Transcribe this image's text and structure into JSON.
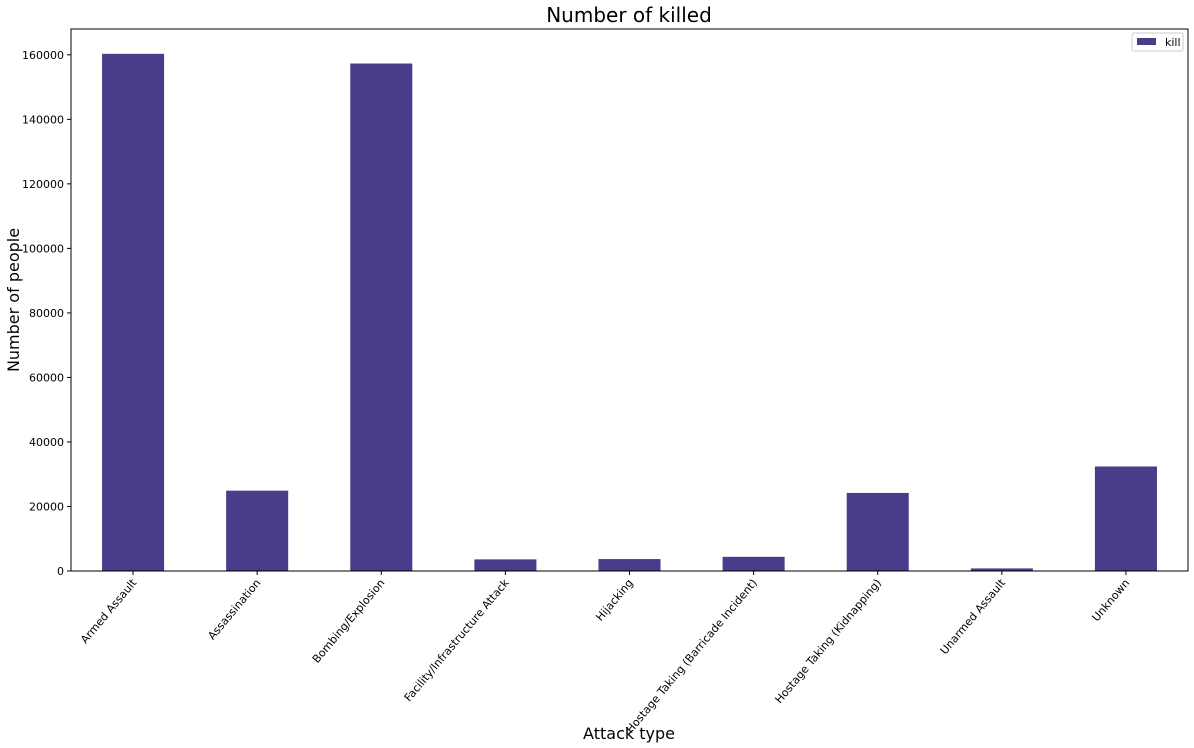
{
  "chart_data": {
    "type": "bar",
    "title": "Number of killed",
    "xlabel": "Attack type",
    "ylabel": "Number of people",
    "categories": [
      "Armed Assault",
      "Assassination",
      "Bombing/Explosion",
      "Facility/Infrastructure Attack",
      "Hijacking",
      "Hostage Taking (Barricade Incident)",
      "Hostage Taking (Kidnapping)",
      "Unarmed Assault",
      "Unknown"
    ],
    "series": [
      {
        "name": "kill",
        "color": "#483d8b",
        "values": [
          160300,
          24900,
          157300,
          3600,
          3700,
          4400,
          24200,
          800,
          32400
        ]
      }
    ],
    "ylim": [
      0,
      168000
    ],
    "yticks": [
      0,
      20000,
      40000,
      60000,
      80000,
      100000,
      120000,
      140000,
      160000
    ],
    "grid": false,
    "legend_position": "top-right",
    "tick_rotation_deg": -50
  }
}
